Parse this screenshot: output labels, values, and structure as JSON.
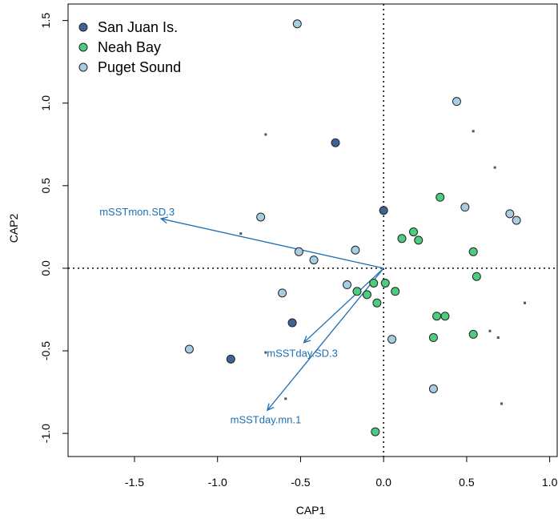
{
  "chart_data": {
    "type": "scatter",
    "xlabel": "CAP1",
    "ylabel": "CAP2",
    "xlim": [
      -1.9,
      1.05
    ],
    "ylim": [
      -1.14,
      1.6
    ],
    "x_ticks": [
      -1.5,
      -1.0,
      -0.5,
      0.0,
      0.5,
      1.0
    ],
    "x_tick_labels": [
      "-1.5",
      "-1.0",
      "-0.5",
      "0.0",
      "0.5",
      "1.0"
    ],
    "y_ticks": [
      -1.0,
      -0.5,
      0.0,
      0.5,
      1.0,
      1.5
    ],
    "y_tick_labels": [
      "-1.0",
      "-0.5",
      "0.0",
      "0.5",
      "1.0",
      "1.5"
    ],
    "grid": false,
    "legend_position": "top-left",
    "reference_lines": {
      "x": 0,
      "y": 0,
      "style": "dotted"
    },
    "series": [
      {
        "name": "San Juan Is.",
        "color": "#3f6396",
        "points": [
          [
            -0.29,
            0.76
          ],
          [
            0.0,
            0.35
          ],
          [
            -0.55,
            -0.33
          ],
          [
            -0.92,
            -0.55
          ]
        ]
      },
      {
        "name": "Neah Bay",
        "color": "#4ccc7e",
        "points": [
          [
            0.34,
            0.43
          ],
          [
            0.18,
            0.22
          ],
          [
            0.11,
            0.18
          ],
          [
            0.21,
            0.17
          ],
          [
            0.54,
            0.1
          ],
          [
            0.56,
            -0.05
          ],
          [
            -0.06,
            -0.09
          ],
          [
            0.01,
            -0.09
          ],
          [
            -0.16,
            -0.14
          ],
          [
            -0.1,
            -0.16
          ],
          [
            0.07,
            -0.14
          ],
          [
            -0.04,
            -0.21
          ],
          [
            0.32,
            -0.29
          ],
          [
            0.37,
            -0.29
          ],
          [
            0.3,
            -0.42
          ],
          [
            0.54,
            -0.4
          ],
          [
            -0.05,
            -0.99
          ]
        ]
      },
      {
        "name": "Puget Sound",
        "color": "#a6cde2",
        "points": [
          [
            -0.52,
            1.48
          ],
          [
            0.44,
            1.01
          ],
          [
            0.49,
            0.37
          ],
          [
            0.76,
            0.33
          ],
          [
            0.8,
            0.29
          ],
          [
            -0.74,
            0.31
          ],
          [
            -0.51,
            0.1
          ],
          [
            -0.42,
            0.05
          ],
          [
            -0.17,
            0.11
          ],
          [
            -0.22,
            -0.1
          ],
          [
            -0.61,
            -0.15
          ],
          [
            0.05,
            -0.43
          ],
          [
            0.3,
            -0.73
          ],
          [
            -1.17,
            -0.49
          ]
        ]
      }
    ],
    "species_points": [
      [
        -0.71,
        0.81
      ],
      [
        0.54,
        0.83
      ],
      [
        0.67,
        0.61
      ],
      [
        -0.86,
        0.21
      ],
      [
        0.85,
        -0.21
      ],
      [
        0.64,
        -0.38
      ],
      [
        0.69,
        -0.42
      ],
      [
        -0.71,
        -0.51
      ],
      [
        -0.59,
        -0.79
      ],
      [
        0.71,
        -0.82
      ]
    ],
    "vectors": [
      {
        "label": "mSSTmon.SD.3",
        "x": -1.34,
        "y": 0.3,
        "color": "#1f6fb4"
      },
      {
        "label": "mSSTday.SD.3",
        "x": -0.48,
        "y": -0.45,
        "color": "#1f6fb4"
      },
      {
        "label": "mSSTday.mn.1",
        "x": -0.7,
        "y": -0.86,
        "color": "#1f6fb4"
      }
    ]
  }
}
